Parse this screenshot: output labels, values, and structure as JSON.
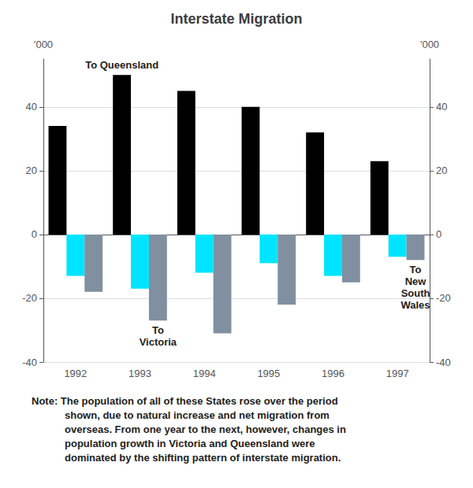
{
  "chart_data": {
    "type": "bar",
    "title": "Interstate Migration",
    "categories": [
      "1992",
      "1993",
      "1994",
      "1995",
      "1996",
      "1997"
    ],
    "series": [
      {
        "color": "#000000",
        "values": [
          34,
          50,
          45,
          40,
          32,
          23
        ],
        "annotations": [
          {
            "text": "To Queensland",
            "category": "1993"
          }
        ]
      },
      {
        "color": "#00e5ff",
        "values": [
          -13,
          -17,
          -12,
          -9,
          -13,
          -7
        ]
      },
      {
        "color": "#8090a0",
        "values": [
          -18,
          -27,
          -31,
          -22,
          -15,
          -8
        ],
        "annotations": [
          {
            "text": "To\nVictoria",
            "category": "1993"
          },
          {
            "text": "To\nNew\nSouth\nWales",
            "category": "1997"
          }
        ]
      }
    ],
    "ylabel": "'000",
    "y2label": "'000",
    "ylim": [
      -40,
      55
    ],
    "yticks": [
      -40,
      -20,
      0,
      20,
      40
    ],
    "y2lim": [
      -40,
      55
    ],
    "y2ticks": [
      -40,
      -20,
      0,
      20,
      40
    ],
    "grid": true,
    "note": {
      "label": "Note:",
      "text": "The population of all of these States rose over the period\nshown, due to natural increase and net migration from\noverseas. From one year to the next, however, changes in\npopulation growth in Victoria and Queensland were\ndominated by the shifting pattern of interstate migration."
    }
  }
}
